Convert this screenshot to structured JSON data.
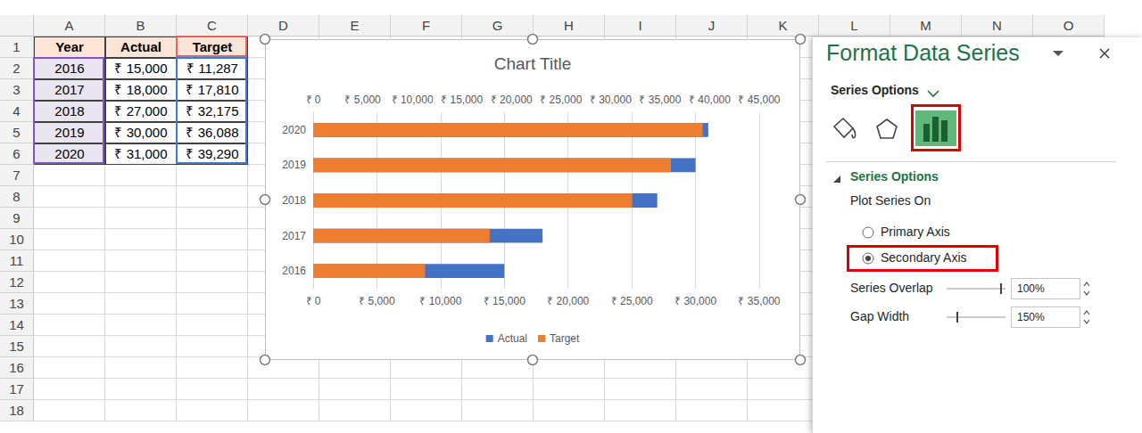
{
  "sheet": {
    "columns": [
      "A",
      "B",
      "C",
      "D",
      "E",
      "F",
      "G",
      "H",
      "I",
      "J",
      "K",
      "L",
      "M",
      "N",
      "O"
    ],
    "rows": [
      1,
      2,
      3,
      4,
      5,
      6,
      7,
      8,
      9,
      10,
      11,
      12,
      13,
      14,
      15,
      16,
      17,
      18
    ],
    "cells": [
      [
        "Year",
        "Actual",
        "Target"
      ],
      [
        "2016",
        "₹ 15,000",
        "₹ 11,287"
      ],
      [
        "2017",
        "₹ 18,000",
        "₹ 17,810"
      ],
      [
        "2018",
        "₹ 27,000",
        "₹ 32,175"
      ],
      [
        "2019",
        "₹ 30,000",
        "₹ 36,088"
      ],
      [
        "2020",
        "₹ 31,000",
        "₹ 39,290"
      ]
    ]
  },
  "chart_data": {
    "type": "bar",
    "orientation": "horizontal",
    "title": "Chart Title",
    "categories": [
      "2016",
      "2017",
      "2018",
      "2019",
      "2020"
    ],
    "series": [
      {
        "name": "Actual",
        "color": "#4472c4",
        "values": [
          15000,
          18000,
          27000,
          30000,
          31000
        ]
      },
      {
        "name": "Target",
        "color": "#ed7d31",
        "values": [
          11287,
          17810,
          32175,
          36088,
          39290
        ],
        "axis": "y2"
      }
    ],
    "xlim": [
      0,
      35000
    ],
    "xticks": [
      {
        "value": 0,
        "label": "₹ 0"
      },
      {
        "value": 5000,
        "label": "₹ 5,000"
      },
      {
        "value": 10000,
        "label": "₹ 10,000"
      },
      {
        "value": 15000,
        "label": "₹ 15,000"
      },
      {
        "value": 20000,
        "label": "₹ 20,000"
      },
      {
        "value": 25000,
        "label": "₹ 25,000"
      },
      {
        "value": 30000,
        "label": "₹ 30,000"
      },
      {
        "value": 35000,
        "label": "₹ 35,000"
      }
    ],
    "y2lim": [
      0,
      45000
    ],
    "y2ticks": [
      {
        "value": 0,
        "label": "₹ 0"
      },
      {
        "value": 5000,
        "label": "₹ 5,000"
      },
      {
        "value": 10000,
        "label": "₹ 10,000"
      },
      {
        "value": 15000,
        "label": "₹ 15,000"
      },
      {
        "value": 20000,
        "label": "₹ 20,000"
      },
      {
        "value": 25000,
        "label": "₹ 25,000"
      },
      {
        "value": 30000,
        "label": "₹ 30,000"
      },
      {
        "value": 35000,
        "label": "₹ 35,000"
      },
      {
        "value": 40000,
        "label": "₹ 40,000"
      },
      {
        "value": 45000,
        "label": "₹ 45,000"
      }
    ],
    "grid": true,
    "legend": "bottom"
  },
  "pane": {
    "title": "Format Data Series",
    "tab": "Series Options",
    "section": "Series Options",
    "group": "Plot Series On",
    "options": [
      {
        "label": "Primary Axis",
        "selected": false
      },
      {
        "label": "Secondary Axis",
        "selected": true
      }
    ],
    "settings": [
      {
        "label": "Series Overlap",
        "value": "100%"
      },
      {
        "label": "Gap Width",
        "value": "150%"
      }
    ]
  }
}
